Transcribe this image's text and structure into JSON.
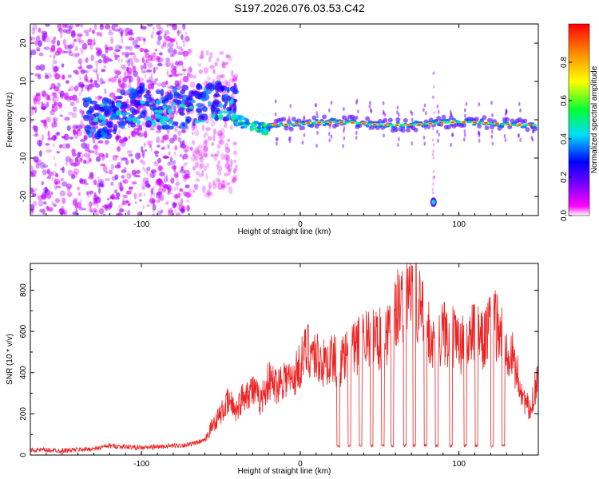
{
  "page_title": "S197.2026.076.03.53.C42",
  "colors": {
    "snr_line": "#ee2222",
    "axis": "#000000",
    "background": "#ffffff"
  },
  "chart_data": [
    {
      "type": "heatmap",
      "title": "S197.2026.076.03.53.C42",
      "xlabel": "Height of straight line (km)",
      "ylabel": "Frequency (Hz)",
      "xlim": [
        -170,
        150
      ],
      "ylim": [
        -25,
        25
      ],
      "x_ticks": [
        -100,
        0,
        100
      ],
      "x_tick_labels": [
        "-100",
        "0",
        "100"
      ],
      "y_ticks": [
        -20,
        -10,
        0,
        10,
        20
      ],
      "y_tick_labels": [
        "-20",
        "-10",
        "0",
        "10",
        "20"
      ],
      "colorbar": {
        "label": "Normalized spectral amplitude",
        "range": [
          0.0,
          1.0
        ],
        "ticks": [
          0.0,
          0.2,
          0.4,
          0.6,
          0.8
        ],
        "tick_labels": [
          "0.0",
          "0.2",
          "0.4",
          "0.6",
          "0.8"
        ],
        "colormap": "rainbow (magenta to red)"
      },
      "features": [
        {
          "name": "scattered noise",
          "x_range": [
            -170,
            -70
          ],
          "freq_range": [
            -25,
            25
          ],
          "amplitude": 0.1
        },
        {
          "name": "broad signal band",
          "x_range": [
            -130,
            -40
          ],
          "freq_center": 2,
          "amplitude": 0.35
        },
        {
          "name": "descending transition",
          "x_range": [
            -40,
            -25
          ],
          "freq_center": -3,
          "amplitude": 0.55
        },
        {
          "name": "strong tone",
          "x_range": [
            -20,
            150
          ],
          "freq_center": -1,
          "amplitude": 0.85
        },
        {
          "name": "isolated spot",
          "x": 84,
          "freq": -21.5,
          "amplitude": 0.35
        }
      ]
    },
    {
      "type": "line",
      "xlabel": "Height of straight line (km)",
      "ylabel": "SNR (10 * v/v)",
      "xlim": [
        -170,
        150
      ],
      "ylim": [
        0,
        930
      ],
      "x_ticks": [
        -100,
        0,
        100
      ],
      "x_tick_labels": [
        "-100",
        "0",
        "100"
      ],
      "y_ticks": [
        0,
        200,
        400,
        600,
        800
      ],
      "y_tick_labels": [
        "0",
        "200",
        "400",
        "600",
        "800"
      ],
      "series": [
        {
          "name": "SNR",
          "x": [
            -170,
            -150,
            -130,
            -120,
            -110,
            -100,
            -90,
            -80,
            -70,
            -60,
            -55,
            -50,
            -45,
            -40,
            -35,
            -30,
            -25,
            -20,
            -15,
            -10,
            -5,
            0,
            5,
            10,
            15,
            20,
            25,
            30,
            35,
            40,
            45,
            50,
            55,
            60,
            65,
            70,
            75,
            80,
            85,
            90,
            95,
            100,
            105,
            110,
            115,
            120,
            125,
            130,
            135,
            140,
            145,
            150
          ],
          "values": [
            25,
            22,
            30,
            45,
            40,
            35,
            40,
            45,
            50,
            70,
            150,
            200,
            260,
            220,
            300,
            320,
            260,
            360,
            340,
            380,
            360,
            440,
            520,
            480,
            440,
            470,
            440,
            480,
            520,
            560,
            600,
            560,
            600,
            700,
            760,
            800,
            720,
            620,
            520,
            600,
            580,
            520,
            560,
            600,
            540,
            640,
            620,
            560,
            440,
            300,
            200,
            420
          ],
          "dropouts_x": [
            24,
            31,
            38,
            45,
            52,
            58,
            66,
            72,
            79,
            86,
            95,
            104,
            111,
            121,
            128
          ],
          "dropout_level": 45,
          "peak": {
            "x": 73,
            "value": 930
          }
        }
      ]
    }
  ]
}
